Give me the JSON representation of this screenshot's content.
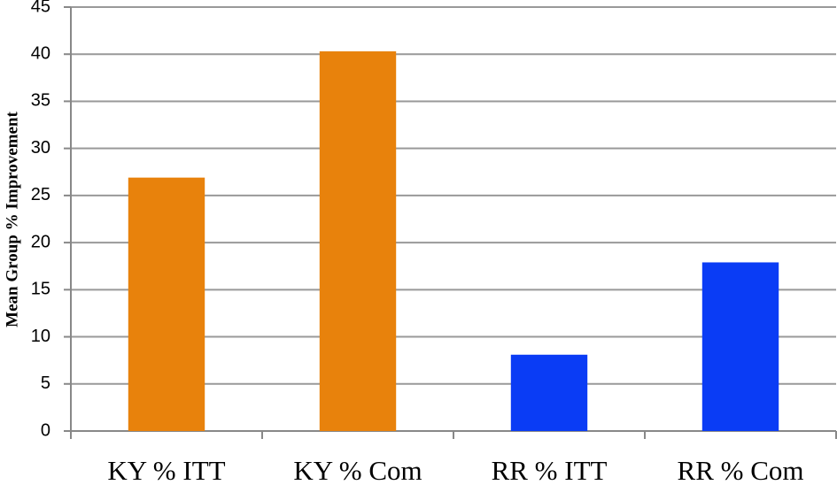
{
  "chart_data": {
    "type": "bar",
    "y_label": "Mean Group % Improvement",
    "categories": [
      "KY % ITT",
      "KY % Com",
      "RR % ITT",
      "RR % Com"
    ],
    "values": [
      26.9,
      40.3,
      8.1,
      17.9
    ],
    "colors": [
      "#e8820c",
      "#e8820c",
      "#0a3cf5",
      "#0a3cf5"
    ],
    "ylim": [
      0,
      45
    ],
    "yticks": [
      0,
      5,
      10,
      15,
      20,
      25,
      30,
      35,
      40,
      45
    ],
    "grid": true
  }
}
